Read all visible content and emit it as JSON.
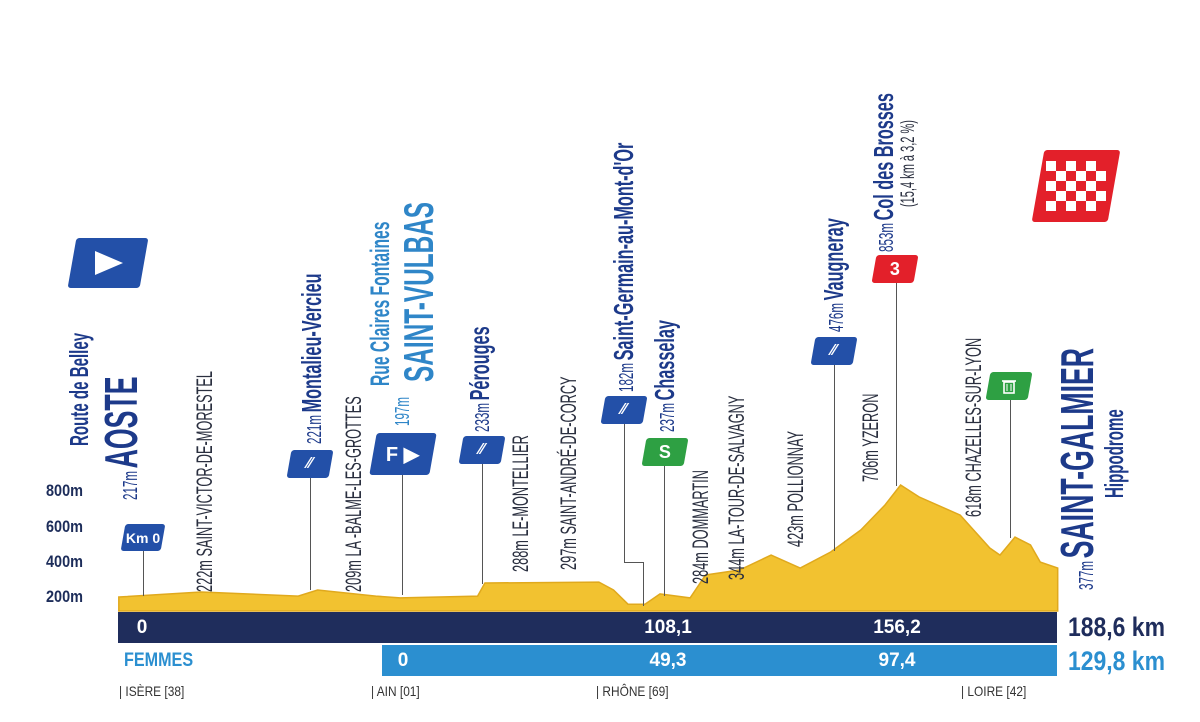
{
  "chart_data": {
    "type": "area",
    "xlabel": "",
    "ylabel": "",
    "yticks": [
      "200m",
      "400m",
      "600m",
      "800m"
    ],
    "ytick_values": [
      200,
      400,
      600,
      800
    ],
    "ylim": [
      100,
      900
    ],
    "xlim_km": [
      -5,
      188.6
    ],
    "grid": false,
    "fill_color": "#f2c230",
    "profile_km": [
      -5,
      12,
      32,
      36,
      48,
      53,
      69,
      70.5,
      94,
      97,
      100,
      103.5,
      106.6,
      112.8,
      116,
      123,
      129.5,
      135.5,
      141.8,
      148,
      153,
      156.2,
      160,
      168.5,
      174.6,
      176.7,
      179.8,
      183,
      185,
      188.6
    ],
    "profile_m": [
      200,
      228,
      205,
      239,
      205,
      195,
      205,
      278,
      283,
      239,
      160,
      160,
      217,
      195,
      322,
      350,
      433,
      361,
      450,
      572,
      711,
      822,
      756,
      655,
      472,
      433,
      533,
      489,
      394,
      361
    ]
  },
  "start": {
    "street": "Route de Belley",
    "elev": "217m",
    "town": "AOSTE",
    "icon": "start-flag-icon"
  },
  "km0": {
    "label": "Km 0"
  },
  "places": {
    "saint_victor": "222m SAINT-VICTOR-DE-MORESTEL",
    "montalieu": {
      "elev": "221m",
      "name": "Montalieu-Vercieu"
    },
    "balme": "209m LA -BALME-LES-GROTTES",
    "vulbas": {
      "street": "Rue Claires Fontaines",
      "elev": "197m",
      "town": "SAINT-VULBAS",
      "flag": "F"
    },
    "perouges": {
      "elev": "233m",
      "name": "Pérouges"
    },
    "montellier": "288m LE-MONTELLIER",
    "corcy": "297m SAINT-ANDRÉ-DE-CORCY",
    "saint_germain": {
      "elev": "182m",
      "name": "Saint-Germain-au-Mont-d'Or"
    },
    "chasselay": {
      "elev": "237m",
      "name": "Chasselay",
      "flag": "S"
    },
    "dommartin": "284m DOMMARTIN",
    "salvagny": "344m LA-TOUR-DE-SALVAGNY",
    "pollionnay": "423m POLLIONNAY",
    "vaugneray": {
      "elev": "476m",
      "name": "Vaugneray"
    },
    "col": {
      "elev": "853m",
      "name": "Col des Brosses",
      "detail": "(15,4 km à 3,2 %)",
      "category": "3"
    },
    "yzeron": "706m YZERON",
    "chazelles": "618m CHAZELLES-SUR-LYON"
  },
  "finish": {
    "elev": "377m",
    "town": "SAINT-GALMIER",
    "place": "Hippodrome",
    "icon": "checkered-flag-icon"
  },
  "distance_bars": {
    "men": {
      "marks": [
        "0",
        "108,1",
        "156,2"
      ],
      "total": "188,6 km",
      "color": "#1f2d5c"
    },
    "women": {
      "label": "FEMMES",
      "marks": [
        "0",
        "49,3",
        "97,4"
      ],
      "total": "129,8 km",
      "color": "#2b8fd0"
    }
  },
  "regions": [
    "| ISÈRE [38]",
    "| AIN [01]",
    "| RHÔNE [69]",
    "| LOIRE [42]"
  ],
  "colors": {
    "navy": "#1d3a8a",
    "light_blue": "#2f86c8",
    "yellow": "#f2c230",
    "green": "#2ea043",
    "red": "#e3202a"
  }
}
